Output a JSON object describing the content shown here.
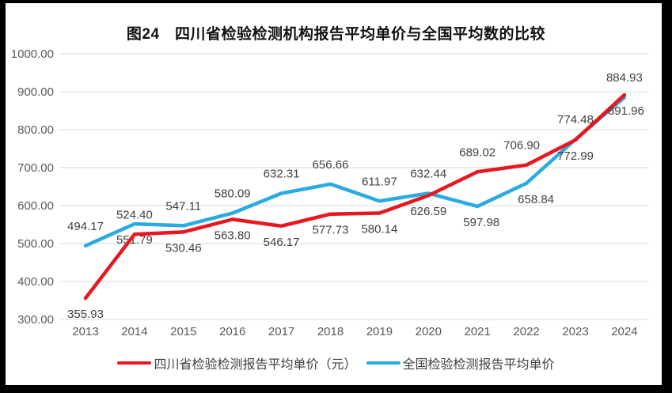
{
  "figure_title": "图24　四川省检验检测机构报告平均单价与全国平均数的比较",
  "chart_data": {
    "type": "line",
    "title": "图24　四川省检验检测机构报告平均单价与全国平均数的比较",
    "categories": [
      "2013",
      "2014",
      "2015",
      "2016",
      "2017",
      "2018",
      "2019",
      "2020",
      "2021",
      "2022",
      "2023",
      "2024"
    ],
    "series": [
      {
        "name": "四川省检验检测报告平均单价（元）",
        "color": "#e8161f",
        "values": [
          355.93,
          524.4,
          530.46,
          563.8,
          546.17,
          577.73,
          580.14,
          626.59,
          689.02,
          706.9,
          772.99,
          891.96
        ]
      },
      {
        "name": "全国检验检测报告平均单价",
        "color": "#29abe2",
        "values": [
          494.17,
          551.79,
          547.11,
          580.09,
          632.31,
          656.66,
          611.97,
          632.44,
          597.98,
          658.84,
          774.48,
          884.93
        ]
      }
    ],
    "xlabel": "",
    "ylabel": "",
    "ylim": [
      300,
      1000
    ],
    "ytick_step": 100,
    "ytick_decimals": 2,
    "grid": "horizontal",
    "legend_position": "bottom",
    "data_labels": true,
    "colors": {
      "gridline": "#d9d9d9",
      "axis_label": "#595959",
      "data_label": "#404040",
      "title": "#111111",
      "background": "#ffffff",
      "frame": "#000000"
    }
  }
}
